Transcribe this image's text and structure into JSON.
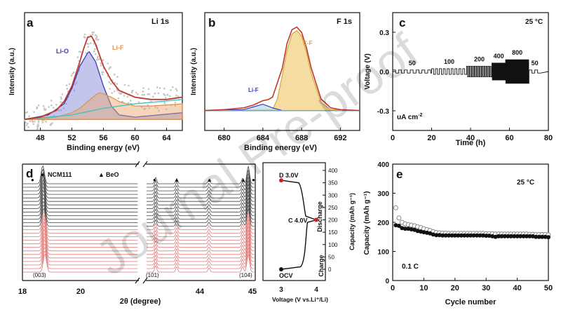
{
  "chart_data": [
    {
      "panel": "a",
      "type": "line",
      "element_label": "Li 1s",
      "xlabel": "Binding energy (eV)",
      "ylabel": "Intensity (a.u.)",
      "xlim": [
        46,
        66
      ],
      "xticks": [
        "48",
        "52",
        "56",
        "60",
        "64"
      ],
      "annotations": [
        "Li-O",
        "Li-F"
      ],
      "colors": {
        "envelope": "#c0392b",
        "li_o": "#3b3bb5",
        "li_f": "#e0964c",
        "baseline": "#44c2c2",
        "raw": "#bbbbbb"
      },
      "series": [
        {
          "x": [
            46,
            48,
            50,
            51,
            52,
            53,
            53.5,
            54,
            54.5,
            55,
            56,
            57,
            58,
            60,
            62,
            64,
            66
          ],
          "y": [
            0.1,
            0.12,
            0.18,
            0.26,
            0.4,
            0.62,
            0.74,
            0.84,
            0.85,
            0.78,
            0.58,
            0.45,
            0.36,
            0.3,
            0.28,
            0.28,
            0.3
          ]
        },
        {
          "x": [
            46,
            49,
            51,
            52,
            53,
            54,
            54.2,
            55,
            56,
            57,
            58,
            60,
            66
          ],
          "y": [
            0.1,
            0.14,
            0.24,
            0.38,
            0.58,
            0.7,
            0.71,
            0.62,
            0.4,
            0.22,
            0.14,
            0.12,
            0.16
          ]
        },
        {
          "x": [
            46,
            50,
            52,
            53,
            54,
            55,
            55.5,
            56,
            57,
            58,
            60,
            62,
            66
          ],
          "y": [
            0.1,
            0.12,
            0.16,
            0.2,
            0.26,
            0.32,
            0.34,
            0.33,
            0.3,
            0.26,
            0.22,
            0.22,
            0.24
          ]
        }
      ]
    },
    {
      "panel": "b",
      "type": "line",
      "element_label": "F 1s",
      "xlabel": "Binding energy (eV)",
      "ylabel": "Intensity (a.u.)",
      "xlim": [
        678,
        694
      ],
      "xticks": [
        "680",
        "684",
        "688",
        "692"
      ],
      "annotations": [
        "Li-F",
        "C-F"
      ],
      "colors": {
        "envelope": "#c0392b",
        "c_f": "#e8c25c",
        "li_f": "#3b3bb5",
        "baseline": "#44c2c2"
      },
      "series": [
        {
          "x": [
            678,
            680,
            682,
            683,
            684,
            684.5,
            685,
            686,
            686.5,
            687,
            687.5,
            688,
            688.5,
            689,
            690,
            691,
            692,
            694
          ],
          "y": [
            0.05,
            0.06,
            0.08,
            0.11,
            0.16,
            0.17,
            0.2,
            0.52,
            0.8,
            0.95,
            0.98,
            0.92,
            0.75,
            0.52,
            0.18,
            0.08,
            0.06,
            0.05
          ]
        },
        {
          "x": [
            678,
            685,
            685.5,
            686,
            686.5,
            687,
            687.5,
            688,
            688.5,
            689,
            690,
            691,
            694
          ],
          "y": [
            0.05,
            0.06,
            0.18,
            0.44,
            0.72,
            0.9,
            0.94,
            0.88,
            0.7,
            0.46,
            0.14,
            0.06,
            0.05
          ]
        },
        {
          "x": [
            678,
            682,
            683,
            684,
            685,
            686,
            694
          ],
          "y": [
            0.05,
            0.06,
            0.09,
            0.12,
            0.08,
            0.05,
            0.05
          ]
        }
      ]
    },
    {
      "panel": "c",
      "type": "line",
      "xlabel": "Time (h)",
      "ylabel": "Voltage (V)",
      "xlim": [
        0,
        80
      ],
      "ylim": [
        -0.45,
        0.45
      ],
      "xticks": [
        "0",
        "20",
        "40",
        "60",
        "80"
      ],
      "yticks": [
        "0.3",
        "0.0",
        "-0.3"
      ],
      "temperature": "25 °C",
      "unit_label": "uA cm",
      "unit_superscript": "-2",
      "segments": [
        {
          "label": "50",
          "x_start": 0,
          "x_end": 20,
          "amplitude": 0.012,
          "cycle_h": 3.0
        },
        {
          "label": "100",
          "x_start": 20,
          "x_end": 38,
          "amplitude": 0.022,
          "cycle_h": 2.0
        },
        {
          "label": "200",
          "x_start": 38,
          "x_end": 51,
          "amplitude": 0.04,
          "cycle_h": 1.0
        },
        {
          "label": "400",
          "x_start": 51,
          "x_end": 58,
          "amplitude": 0.065,
          "cycle_h": 0.45
        },
        {
          "label": "800",
          "x_start": 58,
          "x_end": 70,
          "amplitude": 0.09,
          "cycle_h": 0.25
        },
        {
          "label": "50",
          "x_start": 70,
          "x_end": 76,
          "amplitude": 0.012,
          "cycle_h": 3.0
        }
      ]
    },
    {
      "panel": "d",
      "type": "line",
      "xlabel": "2θ (degree)",
      "xticks": [
        "18",
        "20",
        "44",
        "45"
      ],
      "legend": [
        "NCM111",
        "BeO"
      ],
      "peak_labels": [
        "(003)",
        "(101)",
        "(104)"
      ],
      "pattern_count": 26,
      "colors": {
        "charge": "#444444",
        "discharge": "#e07a78"
      },
      "inset": {
        "type": "line",
        "xlabel": "Voltage (V vs.Li⁺/Li)",
        "ylabel": "Capacity (mAh g⁻¹)",
        "xticks": [
          "3",
          "4"
        ],
        "yticks": [
          "0",
          "50",
          "100",
          "150",
          "200",
          "250",
          "300",
          "350",
          "400"
        ],
        "ylim": [
          0,
          400
        ],
        "points": [
          {
            "label": "OCV",
            "voltage": 3.0,
            "capacity": 0
          },
          {
            "label": "C 4.0V",
            "voltage": 4.0,
            "capacity": 200
          },
          {
            "label": "D 3.0V",
            "voltage": 3.0,
            "capacity": 360
          }
        ],
        "branch_labels": [
          "Charge",
          "Discharge"
        ]
      }
    },
    {
      "panel": "e",
      "type": "scatter",
      "xlabel": "Cycle number",
      "ylabel": "Capacity (mAh g⁻¹)",
      "xlim": [
        0,
        50
      ],
      "ylim": [
        0,
        400
      ],
      "xticks": [
        "0",
        "10",
        "20",
        "30",
        "40",
        "50"
      ],
      "yticks": [
        "0",
        "100",
        "200",
        "300",
        "400"
      ],
      "temperature": "25 °C",
      "rate_label": "0.1 C",
      "series": [
        {
          "x": [
            1,
            2,
            3,
            4,
            5,
            6,
            7,
            8,
            9,
            10,
            11,
            12,
            13,
            14,
            15,
            16,
            17,
            18,
            19,
            20,
            21,
            22,
            23,
            24,
            25,
            26,
            27,
            28,
            29,
            30,
            31,
            32,
            33,
            34,
            35,
            36,
            37,
            38,
            39,
            40,
            41,
            42,
            43,
            44,
            45,
            46,
            47,
            48,
            49,
            50
          ],
          "y": [
            250,
            215,
            200,
            195,
            192,
            190,
            188,
            185,
            182,
            178,
            175,
            172,
            168,
            165,
            164,
            163,
            163,
            162,
            162,
            162,
            162,
            162,
            162,
            162,
            162,
            162,
            162,
            162,
            162,
            161,
            161,
            161,
            160,
            160,
            160,
            160,
            160,
            160,
            160,
            160,
            160,
            160,
            160,
            159,
            159,
            158,
            158,
            158,
            158,
            157
          ]
        },
        {
          "x": [
            1,
            2,
            3,
            4,
            5,
            6,
            7,
            8,
            9,
            10,
            11,
            12,
            13,
            14,
            15,
            16,
            17,
            18,
            19,
            20,
            21,
            22,
            23,
            24,
            25,
            26,
            27,
            28,
            29,
            30,
            31,
            32,
            33,
            34,
            35,
            36,
            37,
            38,
            39,
            40,
            41,
            42,
            43,
            44,
            45,
            46,
            47,
            48,
            49,
            50
          ],
          "y": [
            190,
            188,
            180,
            178,
            178,
            176,
            174,
            170,
            168,
            166,
            164,
            162,
            158,
            156,
            156,
            155,
            155,
            155,
            155,
            155,
            155,
            155,
            155,
            155,
            155,
            155,
            155,
            155,
            155,
            154,
            154,
            152,
            150,
            152,
            152,
            152,
            152,
            152,
            152,
            152,
            152,
            152,
            152,
            152,
            152,
            150,
            150,
            150,
            150,
            149
          ]
        }
      ]
    }
  ],
  "labels": {
    "a": "a",
    "b": "b",
    "c": "c",
    "d": "d",
    "e": "e",
    "watermark": "Journal Pre-proof"
  }
}
